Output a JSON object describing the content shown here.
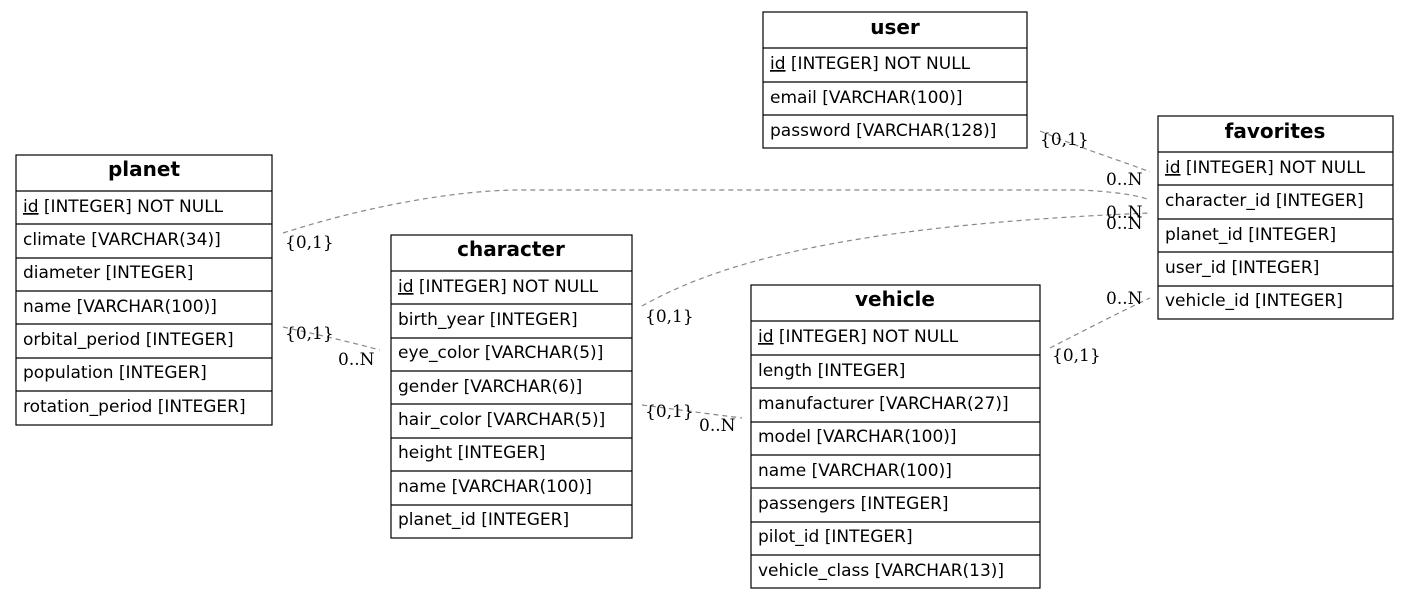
{
  "tables": {
    "user": {
      "name": "user",
      "fields": [
        {
          "key": "id",
          "rest": " [INTEGER] NOT NULL",
          "pk": true
        },
        {
          "key": "email",
          "rest": " [VARCHAR(100)]",
          "pk": false
        },
        {
          "key": "password",
          "rest": " [VARCHAR(128)]",
          "pk": false
        }
      ]
    },
    "favorites": {
      "name": "favorites",
      "fields": [
        {
          "key": "id",
          "rest": " [INTEGER] NOT NULL",
          "pk": true
        },
        {
          "key": "character_id",
          "rest": " [INTEGER]",
          "pk": false
        },
        {
          "key": "planet_id",
          "rest": " [INTEGER]",
          "pk": false
        },
        {
          "key": "user_id",
          "rest": " [INTEGER]",
          "pk": false
        },
        {
          "key": "vehicle_id",
          "rest": " [INTEGER]",
          "pk": false
        }
      ]
    },
    "planet": {
      "name": "planet",
      "fields": [
        {
          "key": "id",
          "rest": " [INTEGER] NOT NULL",
          "pk": true
        },
        {
          "key": "climate",
          "rest": " [VARCHAR(34)]",
          "pk": false
        },
        {
          "key": "diameter",
          "rest": " [INTEGER]",
          "pk": false
        },
        {
          "key": "name",
          "rest": " [VARCHAR(100)]",
          "pk": false
        },
        {
          "key": "orbital_period",
          "rest": " [INTEGER]",
          "pk": false
        },
        {
          "key": "population",
          "rest": " [INTEGER]",
          "pk": false
        },
        {
          "key": "rotation_period",
          "rest": " [INTEGER]",
          "pk": false
        }
      ]
    },
    "character": {
      "name": "character",
      "fields": [
        {
          "key": "id",
          "rest": " [INTEGER] NOT NULL",
          "pk": true
        },
        {
          "key": "birth_year",
          "rest": " [INTEGER]",
          "pk": false
        },
        {
          "key": "eye_color",
          "rest": " [VARCHAR(5)]",
          "pk": false
        },
        {
          "key": "gender",
          "rest": " [VARCHAR(6)]",
          "pk": false
        },
        {
          "key": "hair_color",
          "rest": " [VARCHAR(5)]",
          "pk": false
        },
        {
          "key": "height",
          "rest": " [INTEGER]",
          "pk": false
        },
        {
          "key": "name",
          "rest": " [VARCHAR(100)]",
          "pk": false
        },
        {
          "key": "planet_id",
          "rest": " [INTEGER]",
          "pk": false
        }
      ]
    },
    "vehicle": {
      "name": "vehicle",
      "fields": [
        {
          "key": "id",
          "rest": " [INTEGER] NOT NULL",
          "pk": true
        },
        {
          "key": "length",
          "rest": " [INTEGER]",
          "pk": false
        },
        {
          "key": "manufacturer",
          "rest": " [VARCHAR(27)]",
          "pk": false
        },
        {
          "key": "model",
          "rest": " [VARCHAR(100)]",
          "pk": false
        },
        {
          "key": "name",
          "rest": " [VARCHAR(100)]",
          "pk": false
        },
        {
          "key": "passengers",
          "rest": " [INTEGER]",
          "pk": false
        },
        {
          "key": "pilot_id",
          "rest": " [INTEGER]",
          "pk": false
        },
        {
          "key": "vehicle_class",
          "rest": " [VARCHAR(13)]",
          "pk": false
        }
      ]
    }
  },
  "relationships": [
    {
      "from": "user",
      "to": "favorites",
      "from_card": "{0,1}",
      "to_card": "0..N"
    },
    {
      "from": "planet",
      "to": "favorites",
      "from_card": "{0,1}",
      "to_card": "0..N"
    },
    {
      "from": "character",
      "to": "favorites",
      "from_card": "{0,1}",
      "to_card": "0..N"
    },
    {
      "from": "vehicle",
      "to": "favorites",
      "from_card": "{0,1}",
      "to_card": "0..N"
    },
    {
      "from": "planet",
      "to": "character",
      "from_card": "{0,1}",
      "to_card": "0..N"
    },
    {
      "from": "character",
      "to": "vehicle",
      "from_card": "{0,1}",
      "to_card": "0..N"
    }
  ],
  "colors": {
    "border": "#000000",
    "relationship_line": "#888888",
    "background": "#ffffff"
  }
}
